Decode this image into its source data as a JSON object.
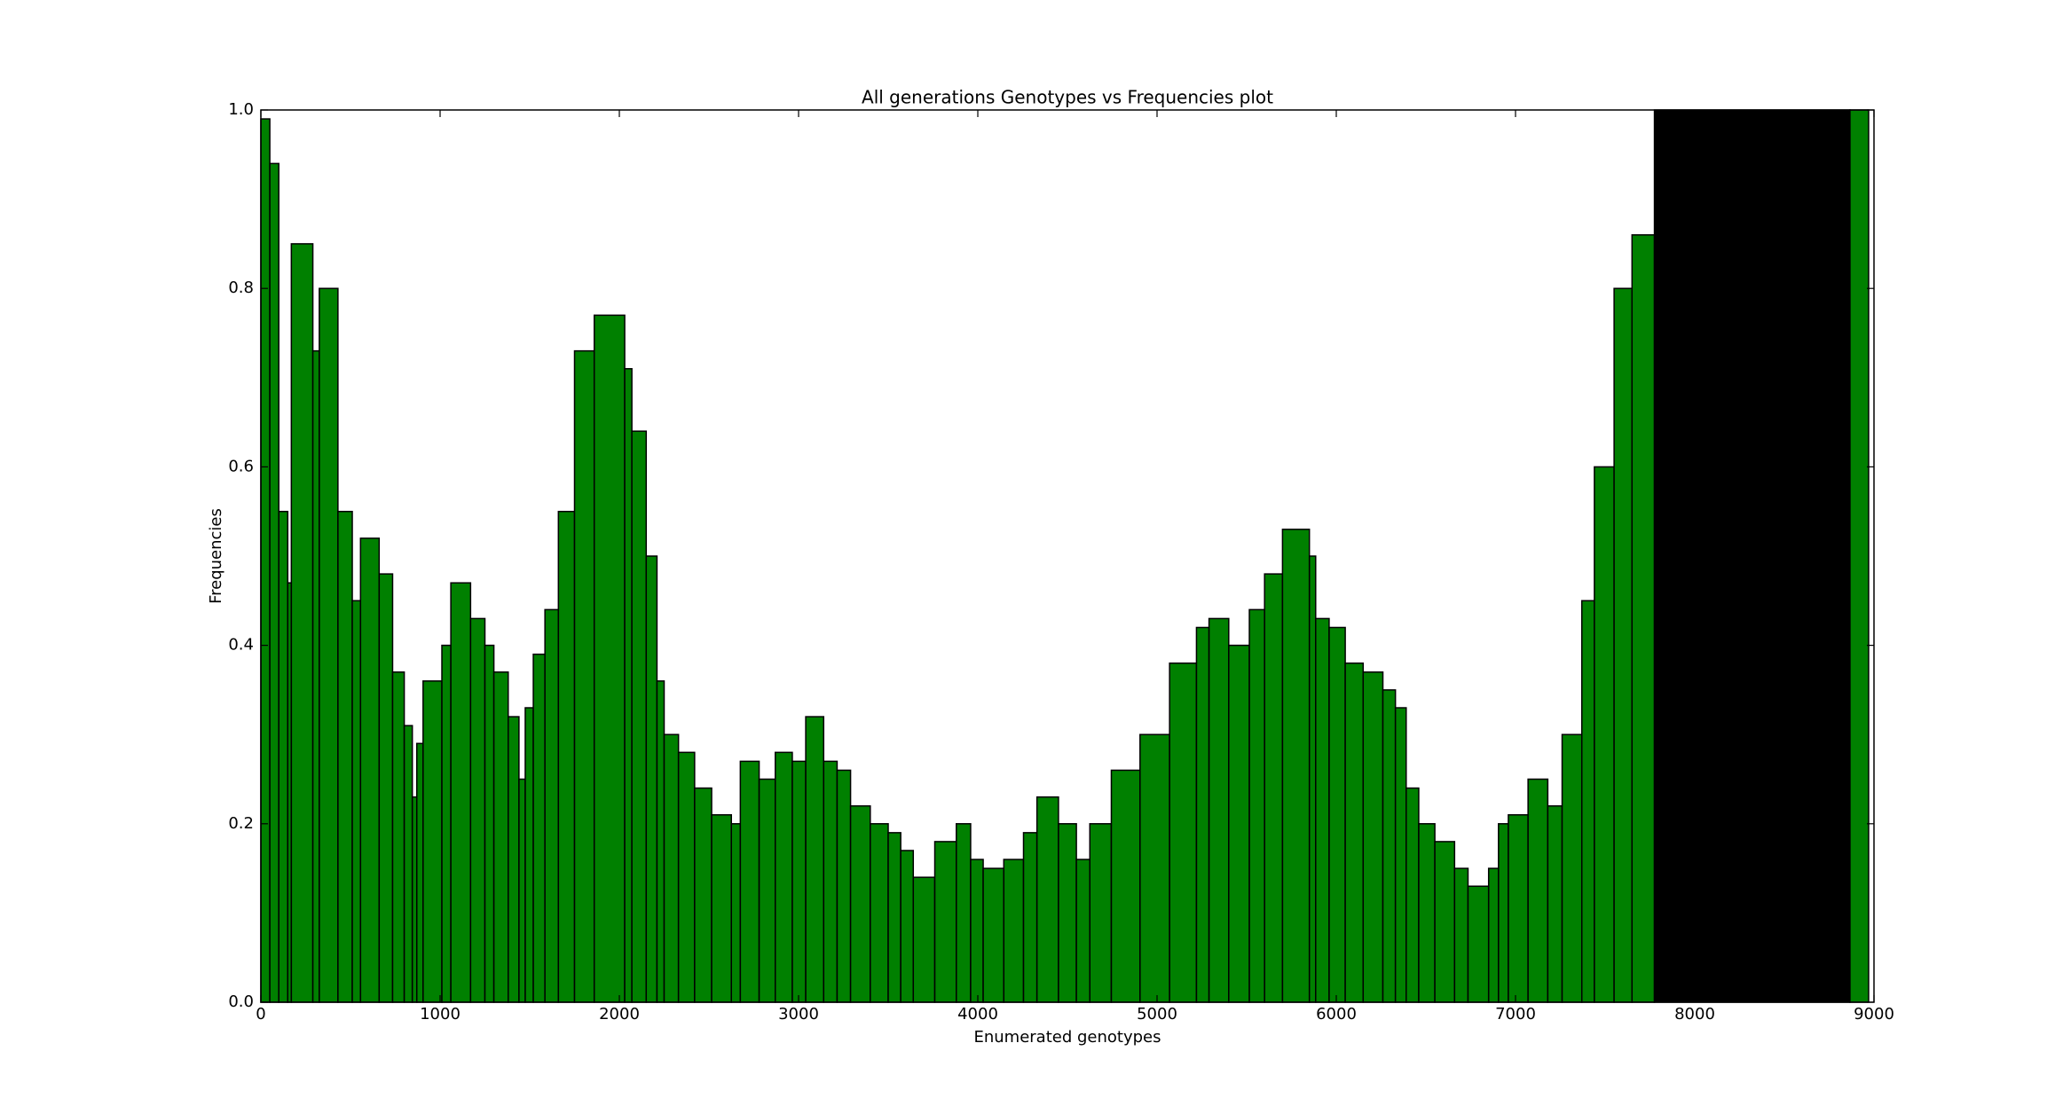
{
  "chart_data": {
    "type": "histogram",
    "title": "All generations Genotypes vs Frequencies plot",
    "xlabel": "Enumerated genotypes",
    "ylabel": "Frequencies",
    "bins": [
      0,
      50,
      100,
      150,
      170,
      290,
      326,
      430,
      510,
      556,
      660,
      735,
      800,
      845,
      870,
      905,
      1010,
      1060,
      1170,
      1250,
      1300,
      1380,
      1440,
      1475,
      1520,
      1585,
      1660,
      1750,
      1860,
      2030,
      2070,
      2150,
      2210,
      2250,
      2330,
      2420,
      2515,
      2625,
      2675,
      2780,
      2870,
      2965,
      3040,
      3140,
      3215,
      3290,
      3400,
      3500,
      3570,
      3640,
      3760,
      3880,
      3960,
      4030,
      4145,
      4255,
      4330,
      4450,
      4550,
      4625,
      4745,
      4905,
      5070,
      5220,
      5290,
      5400,
      5515,
      5600,
      5700,
      5850,
      5885,
      5960,
      6050,
      6150,
      6260,
      6330,
      6390,
      6460,
      6550,
      6660,
      6735,
      6850,
      6905,
      6960,
      7070,
      7180,
      7260,
      7370,
      7440,
      7550,
      7650,
      7775,
      8866,
      8970
    ],
    "values": [
      0.99,
      0.94,
      0.55,
      0.47,
      0.85,
      0.73,
      0.8,
      0.55,
      0.45,
      0.52,
      0.48,
      0.37,
      0.31,
      0.23,
      0.29,
      0.36,
      0.4,
      0.47,
      0.43,
      0.4,
      0.37,
      0.32,
      0.25,
      0.33,
      0.39,
      0.44,
      0.55,
      0.73,
      0.77,
      0.71,
      0.64,
      0.5,
      0.36,
      0.3,
      0.28,
      0.24,
      0.21,
      0.2,
      0.27,
      0.25,
      0.28,
      0.27,
      0.32,
      0.27,
      0.26,
      0.22,
      0.2,
      0.19,
      0.17,
      0.14,
      0.18,
      0.2,
      0.16,
      0.15,
      0.16,
      0.19,
      0.23,
      0.2,
      0.16,
      0.2,
      0.26,
      0.3,
      0.38,
      0.42,
      0.43,
      0.4,
      0.44,
      0.48,
      0.53,
      0.5,
      0.43,
      0.42,
      0.38,
      0.37,
      0.35,
      0.33,
      0.24,
      0.2,
      0.18,
      0.15,
      0.13,
      0.15,
      0.2,
      0.21,
      0.25,
      0.22,
      0.3,
      0.45,
      0.6,
      0.8,
      0.86,
      1.0,
      1.0
    ],
    "colors": [
      "#008000",
      "#008000",
      "#008000",
      "#008000",
      "#008000",
      "#008000",
      "#008000",
      "#008000",
      "#008000",
      "#008000",
      "#008000",
      "#008000",
      "#008000",
      "#008000",
      "#008000",
      "#008000",
      "#008000",
      "#008000",
      "#008000",
      "#008000",
      "#008000",
      "#008000",
      "#008000",
      "#008000",
      "#008000",
      "#008000",
      "#008000",
      "#008000",
      "#008000",
      "#008000",
      "#008000",
      "#008000",
      "#008000",
      "#008000",
      "#008000",
      "#008000",
      "#008000",
      "#008000",
      "#008000",
      "#008000",
      "#008000",
      "#008000",
      "#008000",
      "#008000",
      "#008000",
      "#008000",
      "#008000",
      "#008000",
      "#008000",
      "#008000",
      "#008000",
      "#008000",
      "#008000",
      "#008000",
      "#008000",
      "#008000",
      "#008000",
      "#008000",
      "#008000",
      "#008000",
      "#008000",
      "#008000",
      "#008000",
      "#008000",
      "#008000",
      "#008000",
      "#008000",
      "#008000",
      "#008000",
      "#008000",
      "#008000",
      "#008000",
      "#008000",
      "#008000",
      "#008000",
      "#008000",
      "#008000",
      "#008000",
      "#008000",
      "#008000",
      "#008000",
      "#008000",
      "#008000",
      "#008000",
      "#008000",
      "#008000",
      "#008000",
      "#008000",
      "#008000",
      "#008000",
      "#008000",
      "#000000",
      "#008000"
    ],
    "edgecolor": "#000000",
    "xlim": [
      0,
      9000
    ],
    "xticks": [
      0,
      1000,
      2000,
      3000,
      4000,
      5000,
      6000,
      7000,
      8000,
      9000
    ],
    "ylim": [
      0,
      1
    ],
    "yticks": [
      {
        "value": 0,
        "label": "0.0"
      },
      0.2,
      0.4,
      0.6,
      0.8,
      {
        "value": 1,
        "label": "1.0"
      }
    ]
  }
}
